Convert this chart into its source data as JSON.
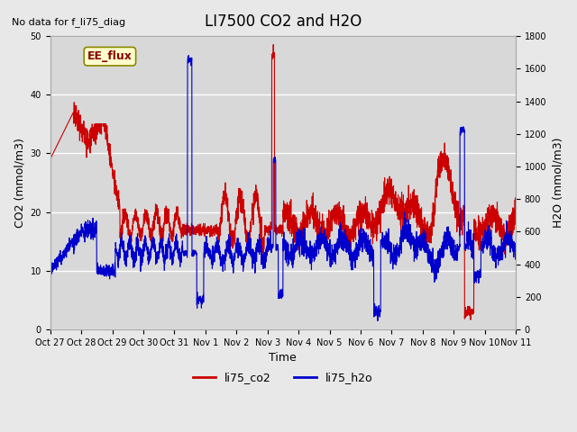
{
  "title": "LI7500 CO2 and H2O",
  "top_left_text": "No data for f_li75_diag",
  "annotation_text": "EE_flux",
  "xlabel": "Time",
  "ylabel_left": "CO2 (mmol/m3)",
  "ylabel_right": "H2O (mmol/m3)",
  "ylim_left": [
    0,
    50
  ],
  "ylim_right": [
    0,
    1800
  ],
  "xtick_labels": [
    "Oct 27",
    "Oct 28",
    "Oct 29",
    "Oct 30",
    "Oct 31",
    "Nov 1",
    "Nov 2",
    "Nov 3",
    "Nov 4",
    "Nov 5",
    "Nov 6",
    "Nov 7",
    "Nov 8",
    "Nov 9",
    "Nov 10",
    "Nov 11"
  ],
  "co2_color": "#cc0000",
  "h2o_color": "#0000cc",
  "background_color": "#e8e8e8",
  "plot_bg_color": "#d8d8d8",
  "grid_color": "#ffffff",
  "legend_entries": [
    "li75_co2",
    "li75_h2o"
  ],
  "annotation_box_color": "#ffffcc",
  "annotation_text_color": "#880000",
  "num_points": 3360
}
